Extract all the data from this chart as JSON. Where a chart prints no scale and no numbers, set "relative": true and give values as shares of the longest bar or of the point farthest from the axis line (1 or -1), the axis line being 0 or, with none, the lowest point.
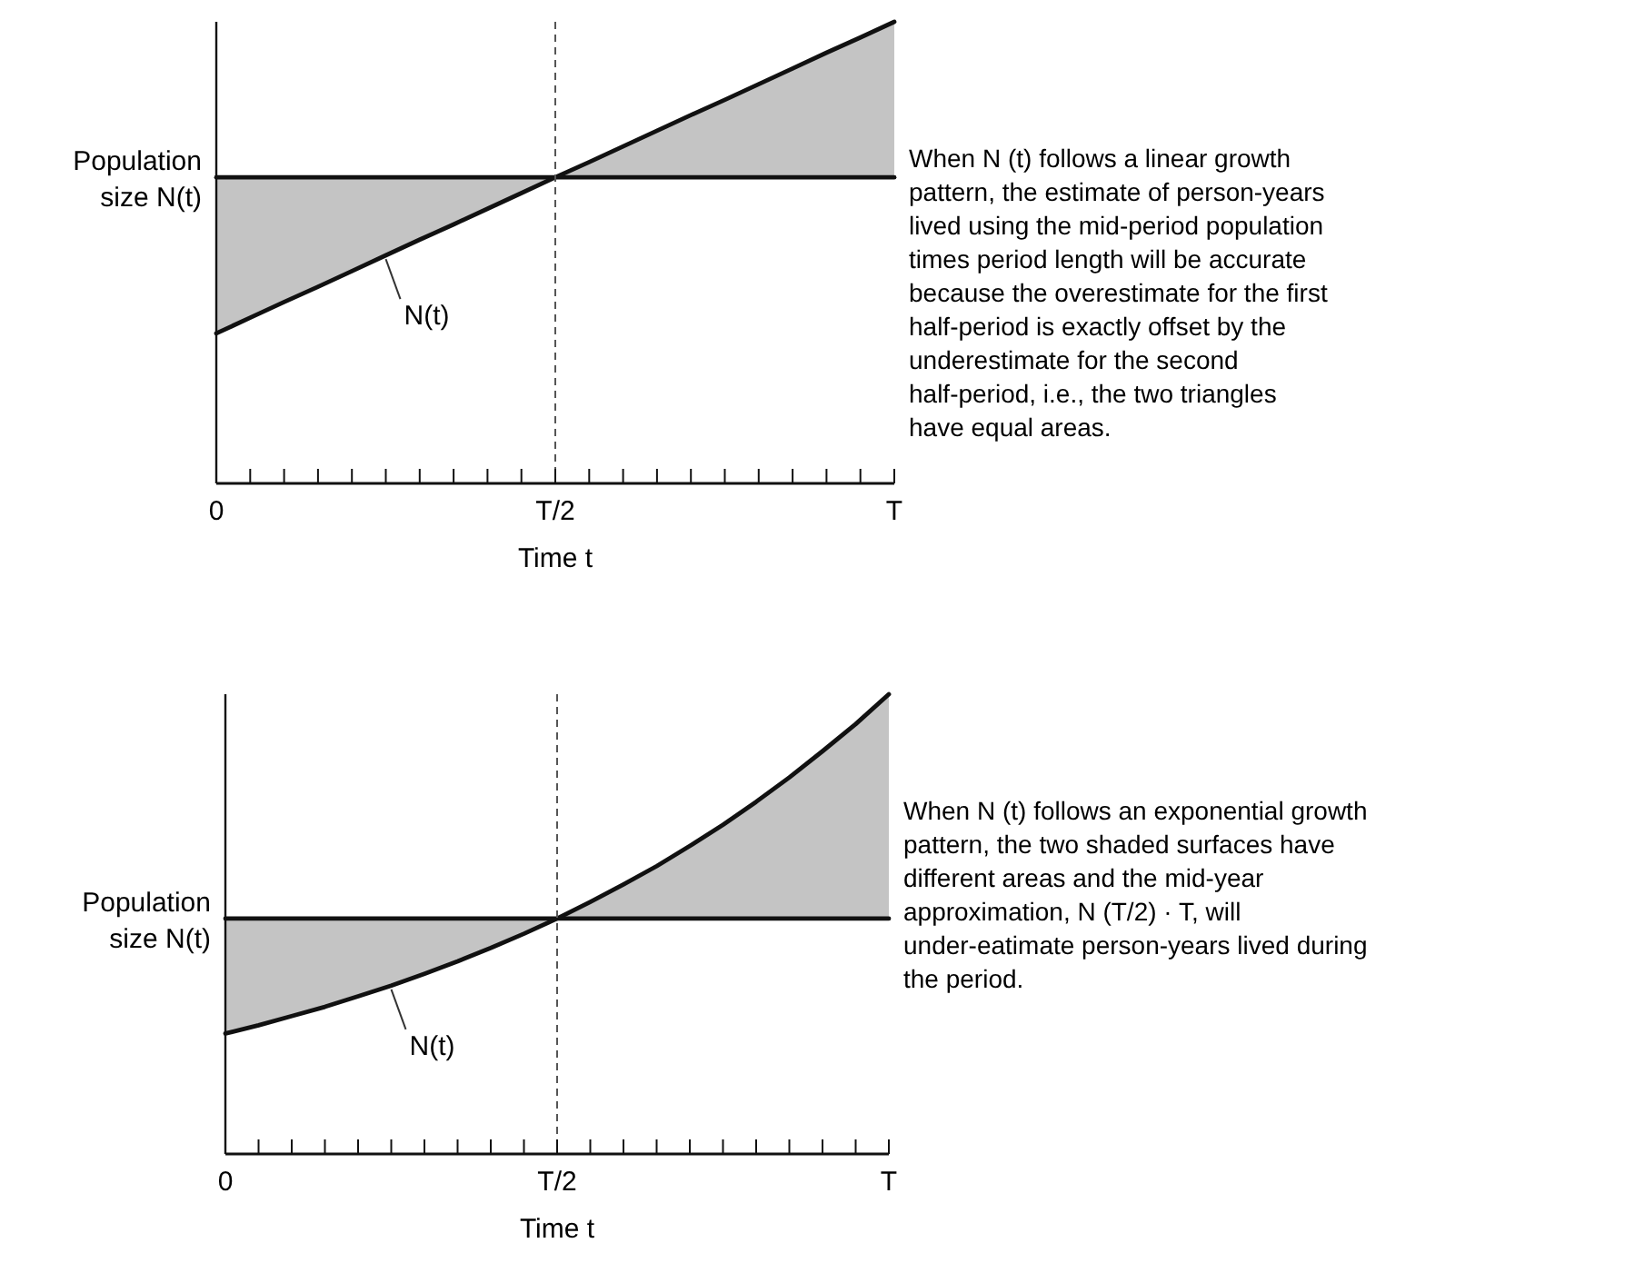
{
  "chart_data": [
    {
      "type": "line",
      "relative": true,
      "xlabel": "Time t",
      "ylabel": "Population size N(t)",
      "categories": [
        "0",
        null,
        null,
        null,
        null,
        null,
        null,
        null,
        null,
        null,
        "T/2",
        null,
        null,
        null,
        null,
        null,
        null,
        null,
        null,
        null,
        "T"
      ],
      "series": [
        {
          "name": "N(t)",
          "color": "#111111",
          "values": [
            0.325,
            0.359,
            0.393,
            0.426,
            0.46,
            0.494,
            0.528,
            0.561,
            0.595,
            0.629,
            0.663,
            0.696,
            0.73,
            0.764,
            0.798,
            0.831,
            0.865,
            0.899,
            0.933,
            0.966,
            1
          ],
          "lower": [
            0.325,
            0.359,
            0.393,
            0.426,
            0.46,
            0.494,
            0.528,
            0.561,
            0.595,
            0.629,
            0.663,
            0.663,
            0.663,
            0.663,
            0.663,
            0.663,
            0.663,
            0.663,
            0.663,
            0.663,
            0.663
          ],
          "upper": [
            0.663,
            0.663,
            0.663,
            0.663,
            0.663,
            0.663,
            0.663,
            0.663,
            0.663,
            0.663,
            0.663,
            0.696,
            0.73,
            0.764,
            0.798,
            0.831,
            0.865,
            0.899,
            0.933,
            0.966,
            1
          ]
        },
        {
          "color": "#111111",
          "values": [
            0.663,
            0.663,
            0.663,
            0.663,
            0.663,
            0.663,
            0.663,
            0.663,
            0.663,
            0.663,
            0.663,
            0.663,
            0.663,
            0.663,
            0.663,
            0.663,
            0.663,
            0.663,
            0.663,
            0.663,
            0.663
          ]
        }
      ],
      "ref_lines": [
        {
          "axis": "x",
          "value": "T/2",
          "line_style": "dashed",
          "color": "#555555"
        }
      ],
      "grid": false,
      "marker": "none",
      "annotations": [
        "When N (t) follows a linear growth pattern, the estimate of person-years lived using the mid-period population times period length will be accurate because the overestimate for the first half-period is exactly offset by the underestimate for the second half-period, i.e., the two triangles have equal areas."
      ]
    },
    {
      "type": "line",
      "relative": true,
      "xlabel": "Time t",
      "ylabel": "Population size N(t)",
      "categories": [
        "0",
        null,
        null,
        null,
        null,
        null,
        null,
        null,
        null,
        null,
        "T/2",
        null,
        null,
        null,
        null,
        null,
        null,
        null,
        null,
        null,
        "T"
      ],
      "series": [
        {
          "name": "N(t)",
          "color": "#111111",
          "values": [
            0.262,
            0.28,
            0.3,
            0.32,
            0.343,
            0.366,
            0.392,
            0.419,
            0.448,
            0.479,
            0.512,
            0.548,
            0.586,
            0.626,
            0.67,
            0.716,
            0.766,
            0.819,
            0.876,
            0.935,
            1
          ],
          "lower": [
            0.262,
            0.28,
            0.3,
            0.32,
            0.343,
            0.366,
            0.392,
            0.419,
            0.448,
            0.479,
            0.512,
            0.512,
            0.512,
            0.512,
            0.512,
            0.512,
            0.512,
            0.512,
            0.512,
            0.512,
            0.512
          ],
          "upper": [
            0.512,
            0.512,
            0.512,
            0.512,
            0.512,
            0.512,
            0.512,
            0.512,
            0.512,
            0.512,
            0.512,
            0.548,
            0.586,
            0.626,
            0.67,
            0.716,
            0.766,
            0.819,
            0.876,
            0.935,
            1
          ]
        },
        {
          "color": "#111111",
          "values": [
            0.512,
            0.512,
            0.512,
            0.512,
            0.512,
            0.512,
            0.512,
            0.512,
            0.512,
            0.512,
            0.512,
            0.512,
            0.512,
            0.512,
            0.512,
            0.512,
            0.512,
            0.512,
            0.512,
            0.512,
            0.512
          ]
        }
      ],
      "ref_lines": [
        {
          "axis": "x",
          "value": "T/2",
          "line_style": "dashed",
          "color": "#555555"
        }
      ],
      "grid": false,
      "marker": "none",
      "annotations": [
        "When N (t) follows an exponential growth pattern, the two shaded surfaces have different areas and the mid-year approximation, N (T/2) · T, will under-eatimate person-years lived during the period."
      ]
    }
  ]
}
